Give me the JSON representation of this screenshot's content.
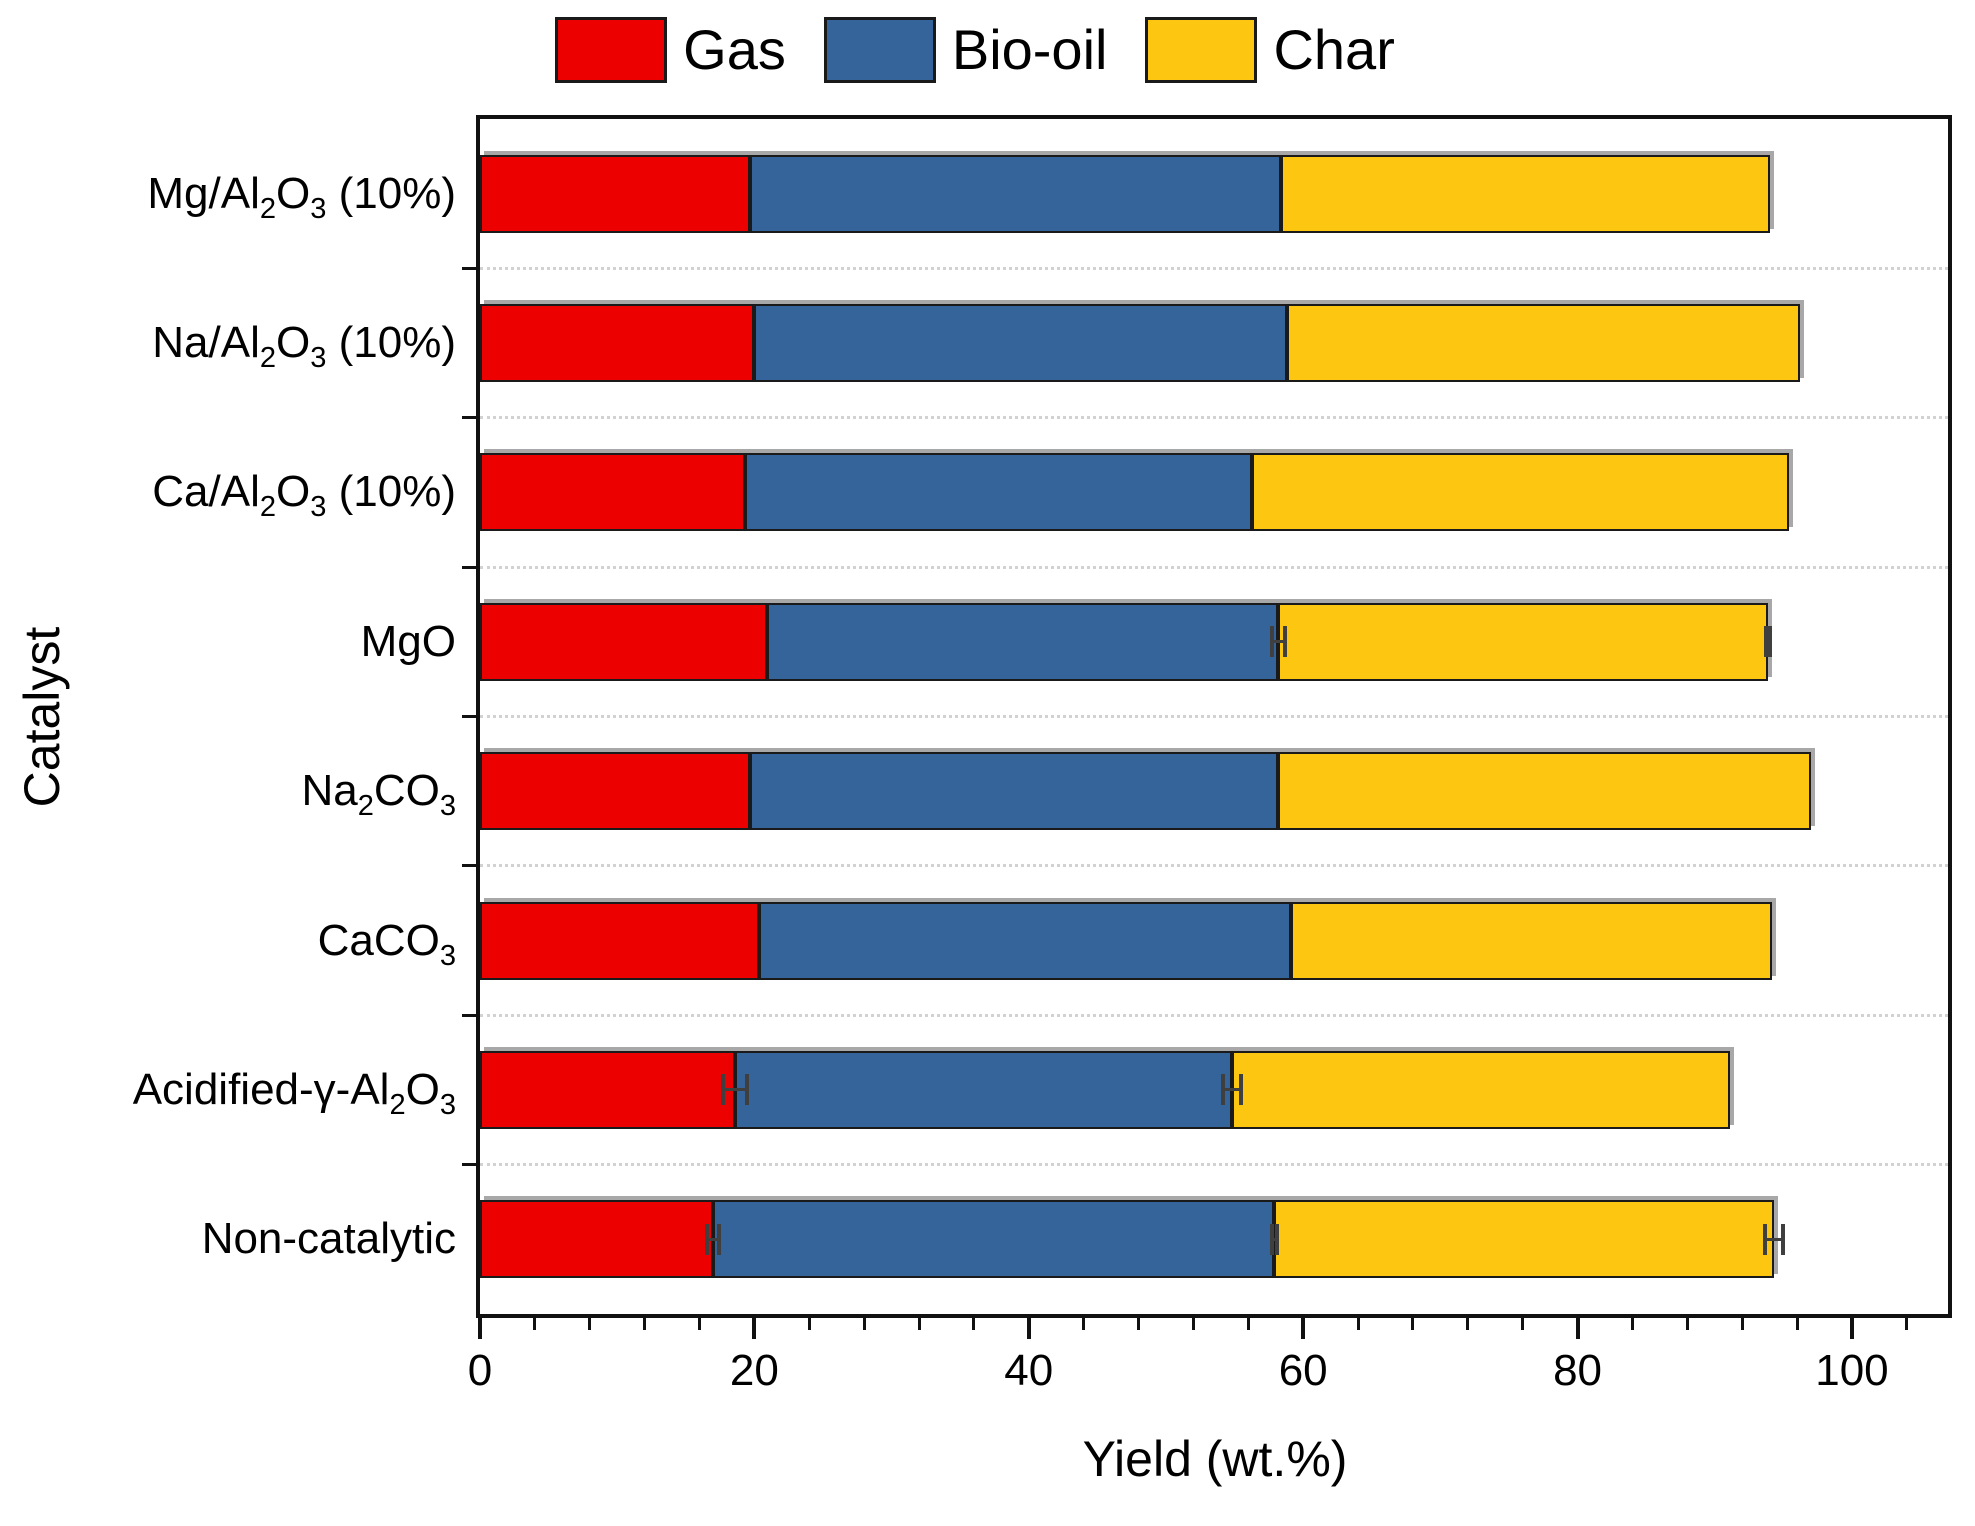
{
  "legend": {
    "position": "top",
    "items": [
      {
        "label": "Gas",
        "color": "#ec0000"
      },
      {
        "label": "Bio-oil",
        "color": "#34649a"
      },
      {
        "label": "Char",
        "color": "#fdc611"
      }
    ]
  },
  "chart_data": {
    "type": "bar",
    "orientation": "horizontal",
    "stacked": true,
    "grid": "dotted horizontal gridlines between category rows",
    "x_axis": {
      "label": "Yield (wt.%)",
      "major_ticks": [
        0,
        20,
        40,
        60,
        80,
        100
      ],
      "minor_step": 4,
      "range": [
        0,
        107
      ]
    },
    "y_axis": {
      "label": "Catalyst"
    },
    "categories_top_to_bottom": [
      {
        "text": "Mg/Al2O3 (10%)",
        "tokens": [
          [
            "t",
            "Mg/Al"
          ],
          [
            "s",
            "2"
          ],
          [
            "t",
            "O"
          ],
          [
            "s",
            "3"
          ],
          [
            "t",
            " (10%)"
          ]
        ]
      },
      {
        "text": "Na/Al2O3 (10%)",
        "tokens": [
          [
            "t",
            "Na/Al"
          ],
          [
            "s",
            "2"
          ],
          [
            "t",
            "O"
          ],
          [
            "s",
            "3"
          ],
          [
            "t",
            " (10%)"
          ]
        ]
      },
      {
        "text": "Ca/Al2O3 (10%)",
        "tokens": [
          [
            "t",
            "Ca/Al"
          ],
          [
            "s",
            "2"
          ],
          [
            "t",
            "O"
          ],
          [
            "s",
            "3"
          ],
          [
            "t",
            " (10%)"
          ]
        ]
      },
      {
        "text": "MgO",
        "tokens": [
          [
            "t",
            "MgO"
          ]
        ]
      },
      {
        "text": "Na2CO3",
        "tokens": [
          [
            "t",
            "Na"
          ],
          [
            "s",
            "2"
          ],
          [
            "t",
            "CO"
          ],
          [
            "s",
            "3"
          ]
        ]
      },
      {
        "text": "CaCO3",
        "tokens": [
          [
            "t",
            "CaCO"
          ],
          [
            "s",
            "3"
          ]
        ]
      },
      {
        "text": "Acidified-γ-Al2O3",
        "tokens": [
          [
            "t",
            "Acidified-γ-Al"
          ],
          [
            "s",
            "2"
          ],
          [
            "t",
            "O"
          ],
          [
            "s",
            "3"
          ]
        ]
      },
      {
        "text": "Non-catalytic",
        "tokens": [
          [
            "t",
            "Non-catalytic"
          ]
        ]
      }
    ],
    "series": [
      {
        "name": "Gas",
        "color": "#ec0000",
        "values": [
          19.7,
          20.0,
          19.3,
          20.9,
          19.7,
          20.3,
          18.6,
          17.0
        ]
      },
      {
        "name": "Bio-oil",
        "color": "#34649a",
        "values": [
          38.7,
          38.8,
          37.0,
          37.3,
          38.5,
          38.8,
          36.2,
          40.9
        ]
      },
      {
        "name": "Char",
        "color": "#fdc611",
        "values": [
          35.6,
          37.4,
          39.1,
          35.7,
          38.8,
          35.1,
          36.3,
          36.4
        ]
      }
    ],
    "totals": [
      94.0,
      96.2,
      95.4,
      93.9,
      97.0,
      94.2,
      91.1,
      94.3
    ],
    "error_bars": [
      {
        "row": 3,
        "boundary_after": "Bio-oil",
        "center": 58.2,
        "err": 0.6
      },
      {
        "row": 3,
        "boundary_after": "Char",
        "center": 93.9,
        "err": 0.3
      },
      {
        "row": 6,
        "boundary_after": "Gas",
        "center": 18.6,
        "err": 1.0
      },
      {
        "row": 6,
        "boundary_after": "Bio-oil",
        "center": 54.8,
        "err": 0.8
      },
      {
        "row": 7,
        "boundary_after": "Gas",
        "center": 17.0,
        "err": 0.6
      },
      {
        "row": 7,
        "boundary_after": "Bio-oil",
        "center": 57.9,
        "err": 0.35
      },
      {
        "row": 7,
        "boundary_after": "Char",
        "center": 94.3,
        "err": 0.8
      }
    ]
  }
}
